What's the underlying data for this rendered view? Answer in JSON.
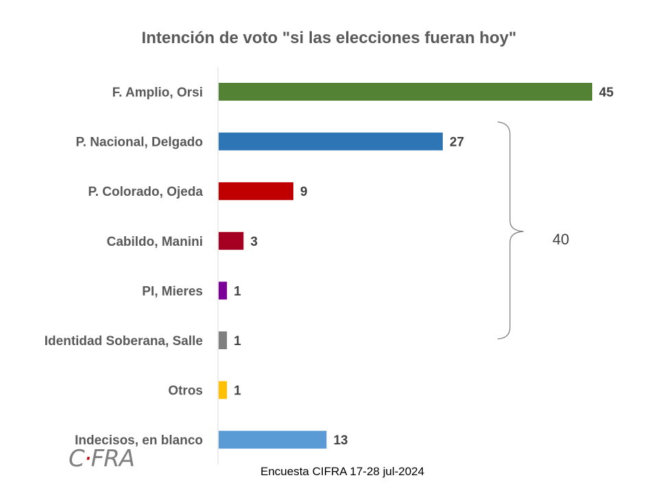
{
  "chart_data": {
    "type": "bar",
    "orientation": "horizontal",
    "title": "Intención de voto \"si las elecciones fueran hoy\"",
    "categories": [
      "F. Amplio, Orsi",
      "P. Nacional, Delgado",
      "P. Colorado, Ojeda",
      "Cabildo, Manini",
      "PI, Mieres",
      "Identidad Soberana, Salle",
      "Otros",
      "Indecisos, en blanco"
    ],
    "values": [
      45,
      27,
      9,
      3,
      1,
      1,
      1,
      13
    ],
    "value_labels": [
      "45",
      "27",
      "9",
      "3",
      "1",
      "1",
      "1",
      "13"
    ],
    "colors": [
      "#548235",
      "#2e75b6",
      "#c00000",
      "#a50021",
      "#7b0099",
      "#7f7f7f",
      "#ffc000",
      "#5b9bd5"
    ],
    "xlim": [
      0,
      45
    ],
    "grid": false,
    "annotation": {
      "label": "40",
      "spans": [
        "P. Nacional, Delgado",
        "Identidad Soberana, Salle"
      ]
    }
  },
  "logo": {
    "text": "CIFRA"
  },
  "source": "Encuesta CIFRA  17-28 jul-2024"
}
